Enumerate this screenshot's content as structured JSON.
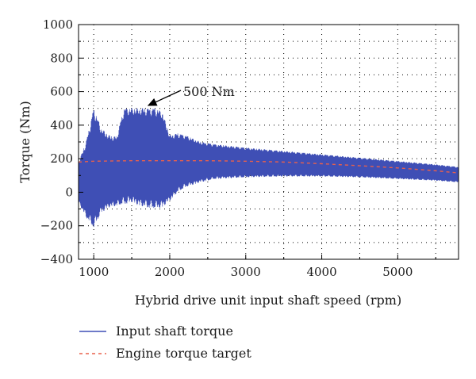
{
  "chart_data": {
    "type": "line",
    "xlabel": "Hybrid drive unit input shaft speed (rpm)",
    "ylabel": "Torque (Nm)",
    "xlim": [
      800,
      5800
    ],
    "ylim": [
      -400,
      1000
    ],
    "xticks": [
      1000,
      2000,
      3000,
      4000,
      5000
    ],
    "yticks": [
      -400,
      -200,
      0,
      200,
      400,
      600,
      800,
      1000
    ],
    "x_tick_labels": [
      "1000",
      "2000",
      "3000",
      "4000",
      "5000"
    ],
    "y_tick_labels": [
      "−400",
      "−200",
      "0",
      "200",
      "400",
      "600",
      "800",
      "1000"
    ],
    "grid": "dotted, major and minor",
    "legend_position": "below",
    "series": [
      {
        "name": "Input shaft torque",
        "color": "#3f4fb5",
        "style": "solid",
        "envelope": {
          "rpm": [
            800,
            900,
            1000,
            1100,
            1200,
            1300,
            1400,
            1500,
            1600,
            1700,
            1800,
            1900,
            2000,
            2100,
            2200,
            2400,
            2600,
            3000,
            3500,
            4000,
            4500,
            5000,
            5500,
            5800
          ],
          "upper": [
            180,
            300,
            500,
            380,
            340,
            330,
            500,
            500,
            500,
            500,
            500,
            480,
            340,
            350,
            340,
            300,
            285,
            265,
            245,
            225,
            205,
            185,
            165,
            150
          ],
          "lower": [
            -60,
            -150,
            -210,
            -120,
            -90,
            -80,
            -70,
            -60,
            -80,
            -90,
            -95,
            -90,
            -50,
            0,
            30,
            60,
            80,
            90,
            95,
            95,
            90,
            80,
            70,
            60
          ]
        }
      },
      {
        "name": "Engine torque target",
        "color": "#e8604c",
        "style": "dashed",
        "points": {
          "rpm": [
            800,
            1000,
            1500,
            2000,
            2500,
            3000,
            3500,
            4000,
            4500,
            5000,
            5500,
            5800
          ],
          "torque": [
            180,
            185,
            188,
            188,
            188,
            185,
            180,
            170,
            158,
            145,
            128,
            115
          ]
        }
      }
    ],
    "annotations": [
      {
        "text": "500 Nm",
        "x": 1720,
        "y": 500
      }
    ]
  }
}
